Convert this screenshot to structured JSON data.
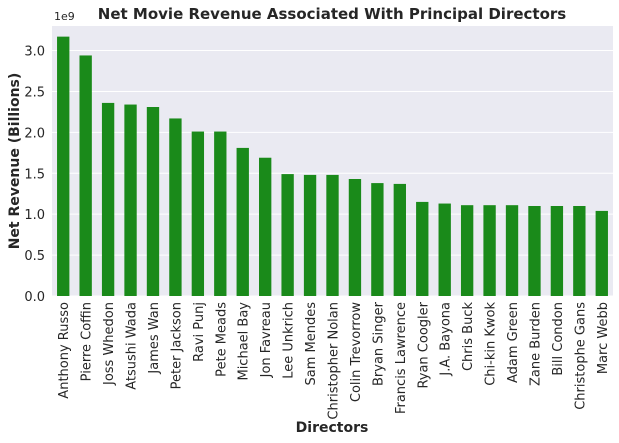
{
  "chart_data": {
    "type": "bar",
    "title": "Net Movie Revenue Associated With Principal Directors",
    "xlabel": "Directors",
    "ylabel": "Net Revenue (Billions)",
    "y_offset_label": "1e9",
    "ylim": [
      0,
      3.3
    ],
    "yticks": [
      "0.0",
      "0.5",
      "1.0",
      "1.5",
      "2.0",
      "2.5",
      "3.0"
    ],
    "grid": true,
    "bar_color": "#1a8a1a",
    "background_color": "#eaeaf2",
    "categories": [
      "Anthony Russo",
      "Pierre Coffin",
      "Joss Whedon",
      "Atsushi Wada",
      "James Wan",
      "Peter Jackson",
      "Ravi Punj",
      "Pete Meads",
      "Michael Bay",
      "Jon Favreau",
      "Lee Unkrich",
      "Sam Mendes",
      "Christopher Nolan",
      "Colin Trevorrow",
      "Bryan Singer",
      "Francis Lawrence",
      "Ryan Coogler",
      "J.A. Bayona",
      "Chris Buck",
      "Chi-kin Kwok",
      "Adam Green",
      "Zane Burden",
      "Bill Condon",
      "Christophe Gans",
      "Marc Webb"
    ],
    "values": [
      3.17,
      2.94,
      2.36,
      2.34,
      2.31,
      2.17,
      2.01,
      2.01,
      1.81,
      1.69,
      1.49,
      1.48,
      1.48,
      1.43,
      1.38,
      1.37,
      1.15,
      1.13,
      1.11,
      1.11,
      1.11,
      1.1,
      1.1,
      1.1,
      1.04
    ]
  }
}
